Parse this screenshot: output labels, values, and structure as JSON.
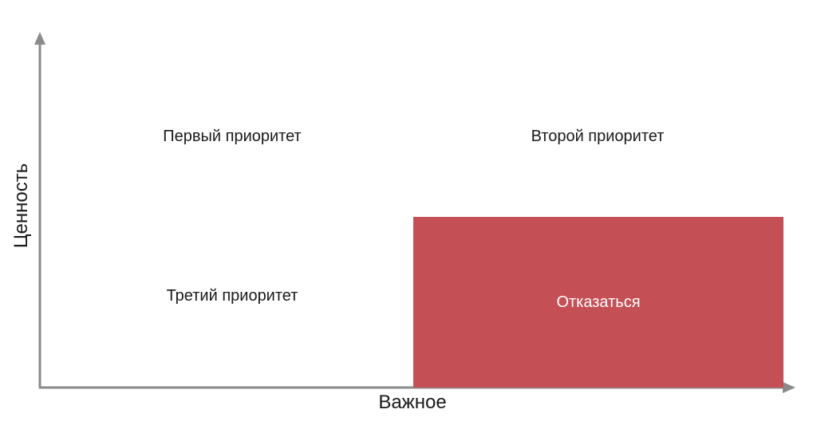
{
  "axes": {
    "x_label": "Важное",
    "y_label": "Ценность",
    "axis_color": "#8a8a8a"
  },
  "quadrants": {
    "top_left": "Первый приоритет",
    "top_right": "Второй приоритет",
    "bottom_left": "Третий приоритет",
    "bottom_right": "Отказаться"
  },
  "colors": {
    "reject_fill": "#c44f55",
    "text": "#1a1a1a",
    "reject_text": "#ffffff"
  }
}
